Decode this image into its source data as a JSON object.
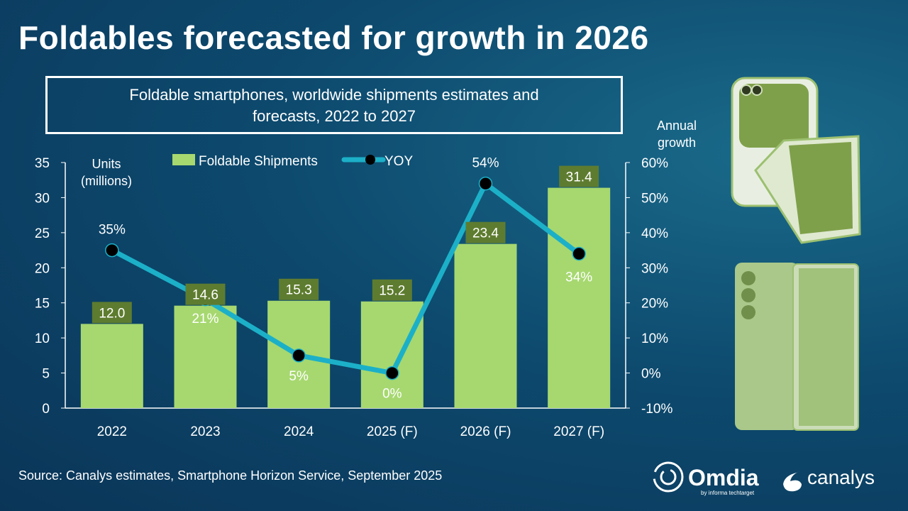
{
  "title": "Foldables forecasted for growth in 2026",
  "subtitle_line1": "Foldable smartphones, worldwide shipments estimates and",
  "subtitle_line2": "forecasts, 2022 to 2027",
  "source": "Source: Canalys estimates, Smartphone Horizon Service, September 2025",
  "logos": {
    "omdia": "Omdia",
    "omdia_sub": "by informa techtarget",
    "canalys": "canalys"
  },
  "chart_data": {
    "type": "bar+line",
    "categories": [
      "2022",
      "2023",
      "2024",
      "2025 (F)",
      "2026 (F)",
      "2027 (F)"
    ],
    "series": [
      {
        "name": "Foldable Shipments",
        "type": "bar",
        "axis": "left",
        "values": [
          12.0,
          14.6,
          15.3,
          15.2,
          23.4,
          31.4
        ],
        "labels": [
          "12.0",
          "14.6",
          "15.3",
          "15.2",
          "23.4",
          "31.4"
        ],
        "color": "#a6d86f"
      },
      {
        "name": "YOY",
        "type": "line",
        "axis": "right",
        "values": [
          35,
          21,
          5,
          0,
          54,
          34
        ],
        "labels": [
          "35%",
          "21%",
          "5%",
          "0%",
          "54%",
          "34%"
        ],
        "color": "#1cb0c8"
      }
    ],
    "ylabel_left_line1": "Units",
    "ylabel_left_line2": "(millions)",
    "ylabel_right_line1": "Annual",
    "ylabel_right_line2": "growth",
    "ylim_left": [
      0,
      35
    ],
    "yticks_left": [
      "0",
      "5",
      "10",
      "15",
      "20",
      "25",
      "30",
      "35"
    ],
    "ylim_right": [
      -10,
      60
    ],
    "yticks_right": [
      "-10%",
      "0%",
      "10%",
      "20%",
      "30%",
      "40%",
      "50%",
      "60%"
    ],
    "legend": "top",
    "grid": false
  },
  "colors": {
    "label_box": "#5e7c2f",
    "bar": "#a6d86f",
    "line": "#1cb0c8"
  }
}
